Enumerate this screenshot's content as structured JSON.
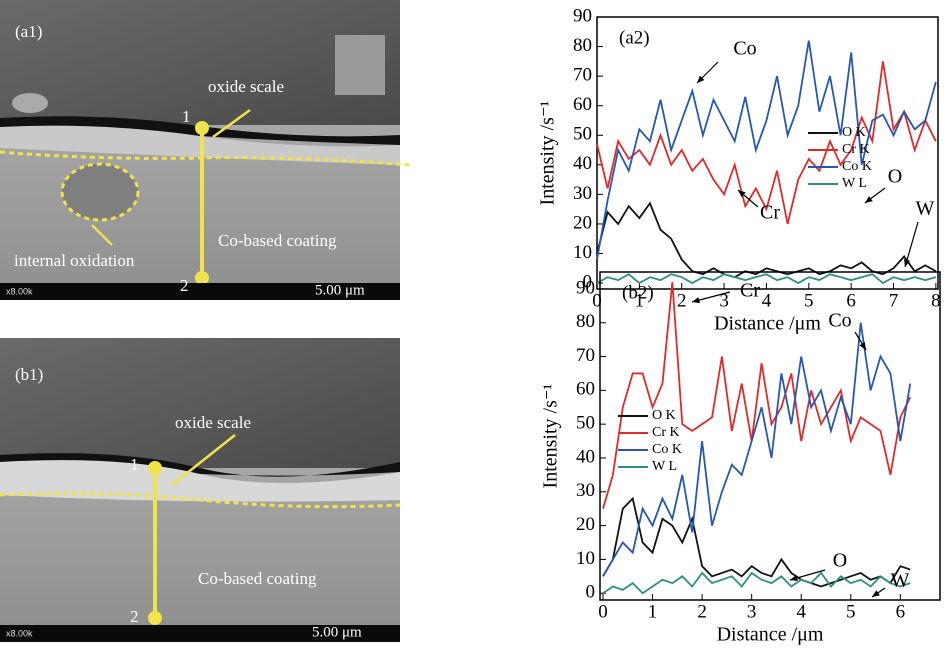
{
  "panels": [
    {
      "label": "(a1)",
      "oxide_label": "oxide scale",
      "point1": "1",
      "point2": "2",
      "internal_label": "internal oxidation",
      "coating_label": "Co-based coating",
      "magnification": "x8.00k",
      "scale_bar": "5.00 μm"
    },
    {
      "label": "(b1)",
      "oxide_label": "oxide scale",
      "point1": "1",
      "point2": "2",
      "coating_label": "Co-based coating",
      "magnification": "x8.00k",
      "scale_bar": "5.00 μm"
    }
  ],
  "chart_data": [
    {
      "type": "line",
      "panel_label": "(a2)",
      "x_label": "Distance /μm",
      "y_label": "Intensity /s⁻¹",
      "x": [
        0,
        0.25,
        0.5,
        0.75,
        1,
        1.25,
        1.5,
        1.75,
        2,
        2.25,
        2.5,
        2.75,
        3,
        3.25,
        3.5,
        3.75,
        4,
        4.25,
        4.5,
        4.75,
        5,
        5.25,
        5.5,
        5.75,
        6,
        6.25,
        6.5,
        6.75,
        7,
        7.25,
        7.5,
        7.75,
        8
      ],
      "series": [
        {
          "name": "O K",
          "color": "#111111",
          "values": [
            10,
            24,
            20,
            26,
            22,
            27,
            18,
            15,
            8,
            4,
            3,
            5,
            3,
            2,
            4,
            3,
            5,
            4,
            3,
            4,
            5,
            3,
            4,
            6,
            5,
            7,
            4,
            3,
            5,
            9,
            4,
            6,
            4
          ]
        },
        {
          "name": "Cr K",
          "color": "#e02a2a",
          "values": [
            47,
            32,
            48,
            42,
            45,
            40,
            50,
            40,
            45,
            38,
            42,
            35,
            30,
            40,
            26,
            32,
            25,
            38,
            20,
            35,
            42,
            38,
            48,
            40,
            45,
            56,
            48,
            75,
            52,
            58,
            45,
            55,
            48
          ]
        },
        {
          "name": "Co K",
          "color": "#2757b0",
          "values": [
            8,
            28,
            45,
            38,
            52,
            48,
            62,
            45,
            55,
            65,
            50,
            62,
            55,
            48,
            63,
            45,
            55,
            70,
            50,
            60,
            82,
            58,
            70,
            50,
            78,
            40,
            55,
            57,
            50,
            58,
            52,
            55,
            68
          ]
        },
        {
          "name": "W L",
          "color": "#2f8f86",
          "values": [
            0,
            2,
            1,
            3,
            0,
            2,
            1,
            3,
            2,
            0,
            2,
            1,
            3,
            2,
            1,
            2,
            3,
            1,
            2,
            0,
            2,
            1,
            3,
            2,
            1,
            2,
            3,
            0,
            2,
            1,
            2,
            1,
            2
          ]
        }
      ],
      "annotations": [
        "Co",
        "Cr",
        "O",
        "W"
      ],
      "xlim": [
        0,
        8.05
      ],
      "ylim": [
        -2,
        90
      ],
      "xticks": [
        0,
        1,
        2,
        3,
        4,
        5,
        6,
        7,
        8
      ],
      "yticks": [
        0,
        10,
        20,
        30,
        40,
        50,
        60,
        70,
        80,
        90
      ],
      "legend": "center right"
    },
    {
      "type": "line",
      "panel_label": "(b2)",
      "x_label": "Distance /μm",
      "y_label": "Intensity /s⁻¹",
      "x": [
        0,
        0.2,
        0.4,
        0.6,
        0.8,
        1,
        1.2,
        1.4,
        1.6,
        1.8,
        2,
        2.2,
        2.4,
        2.6,
        2.8,
        3,
        3.2,
        3.4,
        3.6,
        3.8,
        4,
        4.2,
        4.4,
        4.6,
        4.8,
        5,
        5.2,
        5.4,
        5.6,
        5.8,
        6,
        6.2
      ],
      "series": [
        {
          "name": "O K",
          "color": "#111111",
          "values": [
            5,
            10,
            25,
            28,
            15,
            12,
            22,
            20,
            15,
            22,
            8,
            5,
            6,
            7,
            5,
            8,
            6,
            5,
            10,
            6,
            4,
            3,
            2,
            3,
            4,
            5,
            6,
            4,
            5,
            3,
            8,
            7
          ]
        },
        {
          "name": "Cr K",
          "color": "#e02a2a",
          "values": [
            25,
            35,
            55,
            65,
            65,
            55,
            62,
            92,
            50,
            48,
            50,
            52,
            70,
            48,
            62,
            45,
            68,
            50,
            55,
            65,
            45,
            60,
            50,
            55,
            60,
            45,
            52,
            50,
            48,
            35,
            52,
            58
          ]
        },
        {
          "name": "Co K",
          "color": "#2757b0",
          "values": [
            5,
            10,
            15,
            12,
            25,
            20,
            28,
            22,
            35,
            18,
            45,
            20,
            30,
            38,
            35,
            45,
            55,
            40,
            65,
            50,
            70,
            55,
            60,
            48,
            58,
            50,
            80,
            60,
            70,
            65,
            45,
            62
          ]
        },
        {
          "name": "W L",
          "color": "#2f8f86",
          "values": [
            0,
            2,
            1,
            3,
            0,
            2,
            4,
            3,
            5,
            2,
            6,
            3,
            4,
            5,
            2,
            6,
            4,
            3,
            5,
            2,
            4,
            3,
            6,
            2,
            5,
            3,
            4,
            2,
            5,
            3,
            2,
            3
          ]
        }
      ],
      "annotations": [
        "Cr",
        "Co",
        "O",
        "W"
      ],
      "xlim": [
        -0.06,
        6.8
      ],
      "ylim": [
        -2,
        95
      ],
      "xticks": [
        0,
        1,
        2,
        3,
        4,
        5,
        6
      ],
      "yticks": [
        0,
        10,
        20,
        30,
        40,
        50,
        60,
        70,
        80,
        90
      ],
      "legend": "center left"
    }
  ]
}
